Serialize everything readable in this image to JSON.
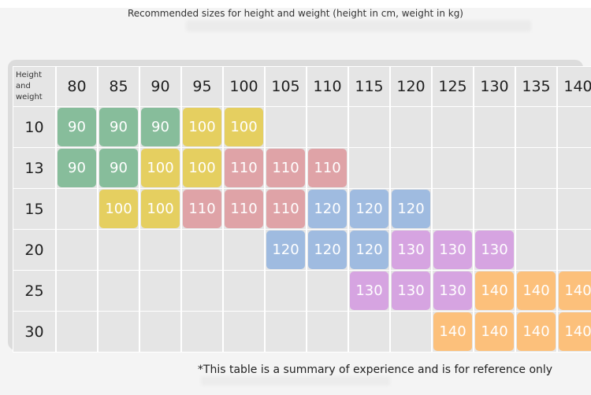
{
  "title": "Recommended sizes for height and weight (height in cm, weight in kg)",
  "corner": [
    "Height",
    "and",
    "weight"
  ],
  "heights": [
    "80",
    "85",
    "90",
    "95",
    "100",
    "105",
    "110",
    "115",
    "120",
    "125",
    "130",
    "135",
    "140"
  ],
  "colors": {
    "90": "#87bd9b",
    "100": "#e5cf60",
    "110": "#dfa3a7",
    "120": "#9fbbe0",
    "130": "#d6a4e1",
    "140": "#fcc07b"
  },
  "rows": [
    {
      "weight": "10",
      "cells": [
        "90",
        "90",
        "90",
        "100",
        "100",
        "",
        "",
        "",
        "",
        "",
        "",
        "",
        ""
      ]
    },
    {
      "weight": "13",
      "cells": [
        "90",
        "90",
        "100",
        "100",
        "110",
        "110",
        "110",
        "",
        "",
        "",
        "",
        "",
        ""
      ]
    },
    {
      "weight": "15",
      "cells": [
        "",
        "100",
        "100",
        "110",
        "110",
        "110",
        "120",
        "120",
        "120",
        "",
        "",
        "",
        ""
      ]
    },
    {
      "weight": "20",
      "cells": [
        "",
        "",
        "",
        "",
        "",
        "120",
        "120",
        "120",
        "130",
        "130",
        "130",
        "",
        ""
      ]
    },
    {
      "weight": "25",
      "cells": [
        "",
        "",
        "",
        "",
        "",
        "",
        "",
        "130",
        "130",
        "130",
        "140",
        "140",
        "140"
      ]
    },
    {
      "weight": "30",
      "cells": [
        "",
        "",
        "",
        "",
        "",
        "",
        "",
        "",
        "",
        "140",
        "140",
        "140",
        "140"
      ]
    }
  ],
  "note": "*This table is a summary of experience and is for reference only"
}
